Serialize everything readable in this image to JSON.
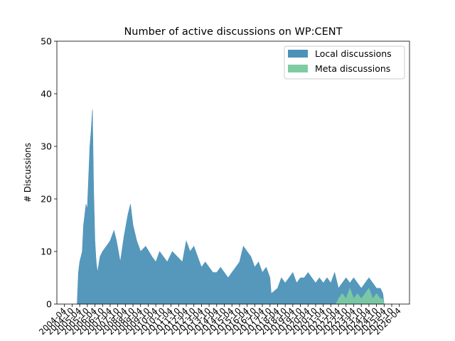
{
  "chart_data": {
    "type": "area",
    "title": "Number of active discussions on WP:CENT",
    "xlabel": "",
    "ylabel": "# Discussions",
    "ylim": [
      0,
      50
    ],
    "yticks": [
      0,
      10,
      20,
      30,
      40,
      50
    ],
    "xlim": [
      "2003-10",
      "2026-12"
    ],
    "xticks": [
      "2004-04",
      "2004-10",
      "2005-04",
      "2005-10",
      "2006-04",
      "2006-10",
      "2007-04",
      "2007-10",
      "2008-04",
      "2008-10",
      "2009-04",
      "2009-10",
      "2010-04",
      "2010-10",
      "2011-04",
      "2011-10",
      "2012-04",
      "2012-10",
      "2013-04",
      "2013-10",
      "2014-04",
      "2014-10",
      "2015-04",
      "2015-10",
      "2016-04",
      "2016-10",
      "2017-04",
      "2017-10",
      "2018-04",
      "2018-10",
      "2019-04",
      "2019-10",
      "2020-04",
      "2020-10",
      "2021-04",
      "2021-10",
      "2022-04",
      "2022-10",
      "2023-04",
      "2023-10",
      "2024-04",
      "2024-10",
      "2025-04",
      "2025-10",
      "2026-04"
    ],
    "grid": false,
    "legend_position": "top-right",
    "series": [
      {
        "name": "Local discussions",
        "color": "#4c92b8",
        "points": [
          [
            "2005-02",
            0
          ],
          [
            "2005-03",
            6
          ],
          [
            "2005-04",
            8
          ],
          [
            "2005-06",
            10
          ],
          [
            "2005-07",
            15
          ],
          [
            "2005-09",
            19
          ],
          [
            "2005-10",
            18
          ],
          [
            "2005-11",
            24
          ],
          [
            "2005-12",
            30
          ],
          [
            "2006-01",
            33
          ],
          [
            "2006-02",
            37
          ],
          [
            "2006-03",
            22
          ],
          [
            "2006-04",
            12
          ],
          [
            "2006-05",
            8
          ],
          [
            "2006-06",
            6
          ],
          [
            "2006-08",
            9
          ],
          [
            "2006-10",
            10
          ],
          [
            "2007-01",
            11
          ],
          [
            "2007-04",
            12
          ],
          [
            "2007-07",
            14
          ],
          [
            "2007-09",
            12
          ],
          [
            "2007-12",
            8
          ],
          [
            "2008-03",
            13
          ],
          [
            "2008-06",
            17
          ],
          [
            "2008-08",
            19
          ],
          [
            "2008-10",
            15
          ],
          [
            "2009-01",
            12
          ],
          [
            "2009-04",
            10
          ],
          [
            "2009-08",
            11
          ],
          [
            "2010-01",
            9
          ],
          [
            "2010-04",
            8
          ],
          [
            "2010-07",
            10
          ],
          [
            "2010-10",
            9
          ],
          [
            "2011-01",
            8
          ],
          [
            "2011-05",
            10
          ],
          [
            "2011-09",
            9
          ],
          [
            "2012-01",
            8
          ],
          [
            "2012-04",
            12
          ],
          [
            "2012-07",
            10
          ],
          [
            "2012-10",
            11
          ],
          [
            "2013-01",
            9
          ],
          [
            "2013-04",
            7
          ],
          [
            "2013-07",
            8
          ],
          [
            "2013-10",
            7
          ],
          [
            "2014-01",
            6
          ],
          [
            "2014-04",
            6
          ],
          [
            "2014-07",
            7
          ],
          [
            "2014-10",
            6
          ],
          [
            "2015-01",
            5
          ],
          [
            "2015-04",
            6
          ],
          [
            "2015-07",
            7
          ],
          [
            "2015-10",
            8
          ],
          [
            "2016-01",
            11
          ],
          [
            "2016-04",
            10
          ],
          [
            "2016-07",
            9
          ],
          [
            "2016-10",
            7
          ],
          [
            "2017-01",
            8
          ],
          [
            "2017-04",
            6
          ],
          [
            "2017-07",
            7
          ],
          [
            "2017-10",
            5
          ],
          [
            "2017-11",
            2
          ],
          [
            "2018-04",
            3
          ],
          [
            "2018-07",
            5
          ],
          [
            "2018-10",
            4
          ],
          [
            "2019-01",
            5
          ],
          [
            "2019-04",
            6
          ],
          [
            "2019-07",
            4
          ],
          [
            "2019-10",
            5
          ],
          [
            "2020-01",
            5
          ],
          [
            "2020-04",
            6
          ],
          [
            "2020-07",
            5
          ],
          [
            "2020-10",
            4
          ],
          [
            "2021-01",
            5
          ],
          [
            "2021-04",
            4
          ],
          [
            "2021-07",
            5
          ],
          [
            "2021-10",
            4
          ],
          [
            "2022-01",
            6
          ],
          [
            "2022-04",
            3
          ],
          [
            "2022-07",
            4
          ],
          [
            "2022-10",
            5
          ],
          [
            "2023-01",
            4
          ],
          [
            "2023-04",
            5
          ],
          [
            "2023-07",
            4
          ],
          [
            "2023-10",
            3
          ],
          [
            "2024-01",
            4
          ],
          [
            "2024-04",
            5
          ],
          [
            "2024-07",
            4
          ],
          [
            "2024-10",
            3
          ],
          [
            "2025-01",
            3
          ],
          [
            "2025-03",
            2
          ],
          [
            "2025-04",
            0
          ]
        ]
      },
      {
        "name": "Meta discussions",
        "color": "#7fcca2",
        "points": [
          [
            "2022-02",
            0
          ],
          [
            "2022-04",
            1
          ],
          [
            "2022-07",
            2
          ],
          [
            "2022-10",
            1
          ],
          [
            "2023-01",
            3
          ],
          [
            "2023-04",
            1
          ],
          [
            "2023-07",
            2
          ],
          [
            "2023-10",
            1
          ],
          [
            "2024-01",
            2
          ],
          [
            "2024-04",
            3
          ],
          [
            "2024-07",
            1
          ],
          [
            "2024-10",
            2
          ],
          [
            "2025-01",
            1
          ],
          [
            "2025-03",
            1
          ],
          [
            "2025-04",
            0
          ]
        ]
      }
    ]
  }
}
